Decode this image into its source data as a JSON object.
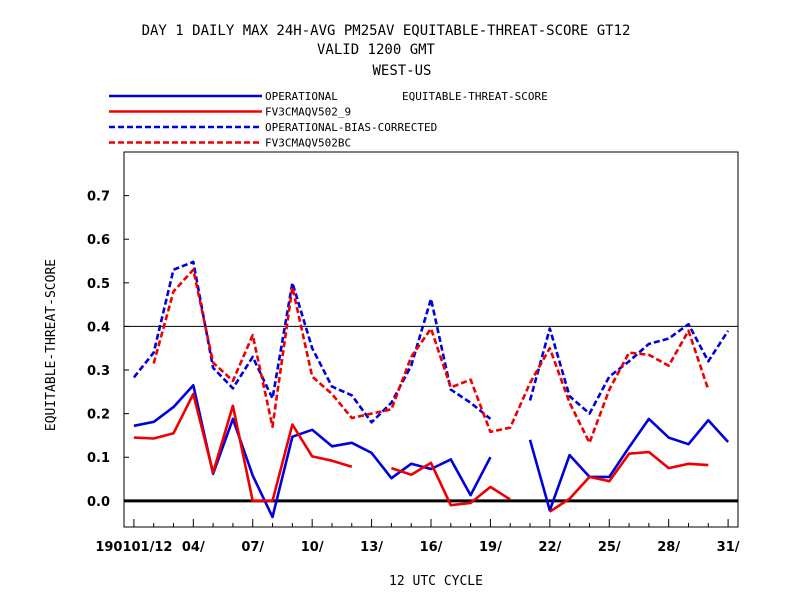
{
  "title": {
    "line1": "DAY 1 DAILY MAX   24H-AVG PM25AV EQUITABLE-THREAT-SCORE GT12",
    "line2": "VALID 1200 GMT",
    "line3": "WEST-US"
  },
  "legend_note": "EQUITABLE-THREAT-SCORE",
  "chart_data": {
    "type": "line",
    "xlabel": "12 UTC CYCLE",
    "ylabel": "EQUITABLE-THREAT-SCORE",
    "xlim": [
      0.5,
      31.5
    ],
    "ylim": [
      -0.06,
      0.8
    ],
    "x_ticks": [
      1,
      4,
      7,
      10,
      13,
      16,
      19,
      22,
      25,
      28,
      31
    ],
    "x_tick_labels": [
      "190101/12",
      "04/",
      "07/",
      "10/",
      "13/",
      "16/",
      "19/",
      "22/",
      "25/",
      "28/",
      "31/"
    ],
    "y_ticks": [
      0.0,
      0.1,
      0.2,
      0.3,
      0.4,
      0.5,
      0.6,
      0.7
    ],
    "y_tick_labels": [
      "0.0",
      "0.1",
      "0.2",
      "0.3",
      "0.4",
      "0.5",
      "0.6",
      "0.7"
    ],
    "reference_lines": [
      0.0,
      0.4
    ],
    "legend_position": "top-left",
    "x": [
      1,
      2,
      3,
      4,
      5,
      6,
      7,
      8,
      9,
      10,
      11,
      12,
      13,
      14,
      15,
      16,
      17,
      18,
      19,
      20,
      21,
      22,
      23,
      24,
      25,
      26,
      27,
      28,
      29,
      30,
      31
    ],
    "series": [
      {
        "name": "OPERATIONAL",
        "color": "#0000dd",
        "dash": "solid",
        "values": [
          0.172,
          0.181,
          0.215,
          0.265,
          0.062,
          0.188,
          0.058,
          -0.037,
          0.147,
          0.163,
          0.125,
          0.133,
          0.11,
          0.052,
          0.085,
          0.073,
          0.095,
          0.013,
          0.1,
          null,
          0.14,
          -0.022,
          0.105,
          0.055,
          0.055,
          0.123,
          0.188,
          0.145,
          0.13,
          0.185,
          0.135
        ]
      },
      {
        "name": "FV3CMAQV502_9",
        "color": "#ee0000",
        "dash": "solid",
        "values": [
          0.145,
          0.143,
          0.155,
          0.245,
          0.065,
          0.218,
          0.0,
          0.0,
          0.175,
          0.102,
          0.092,
          0.078,
          null,
          0.075,
          0.06,
          0.087,
          -0.01,
          -0.005,
          0.032,
          0.003,
          null,
          -0.025,
          0.005,
          0.055,
          0.045,
          0.108,
          0.112,
          0.075,
          0.085,
          0.082,
          null
        ]
      },
      {
        "name": "OPERATIONAL-BIAS-CORRECTED",
        "color": "#0000dd",
        "dash": "dashed",
        "values": [
          0.283,
          0.34,
          0.53,
          0.548,
          0.305,
          0.258,
          0.33,
          0.235,
          0.5,
          0.35,
          0.262,
          0.242,
          0.18,
          0.225,
          0.31,
          0.463,
          0.255,
          0.225,
          0.188,
          null,
          0.23,
          0.395,
          0.24,
          0.2,
          0.285,
          0.32,
          0.36,
          0.372,
          0.405,
          0.32,
          0.39
        ]
      },
      {
        "name": "FV3CMAQV502BC",
        "color": "#ee0000",
        "dash": "dashed",
        "values": [
          null,
          0.315,
          0.48,
          0.53,
          0.317,
          0.275,
          0.38,
          0.17,
          0.49,
          0.285,
          0.245,
          0.19,
          0.2,
          0.21,
          0.33,
          0.395,
          0.26,
          0.278,
          0.158,
          0.168,
          0.27,
          0.35,
          0.225,
          0.133,
          0.255,
          0.34,
          0.335,
          0.31,
          0.39,
          0.255,
          null
        ]
      }
    ]
  }
}
